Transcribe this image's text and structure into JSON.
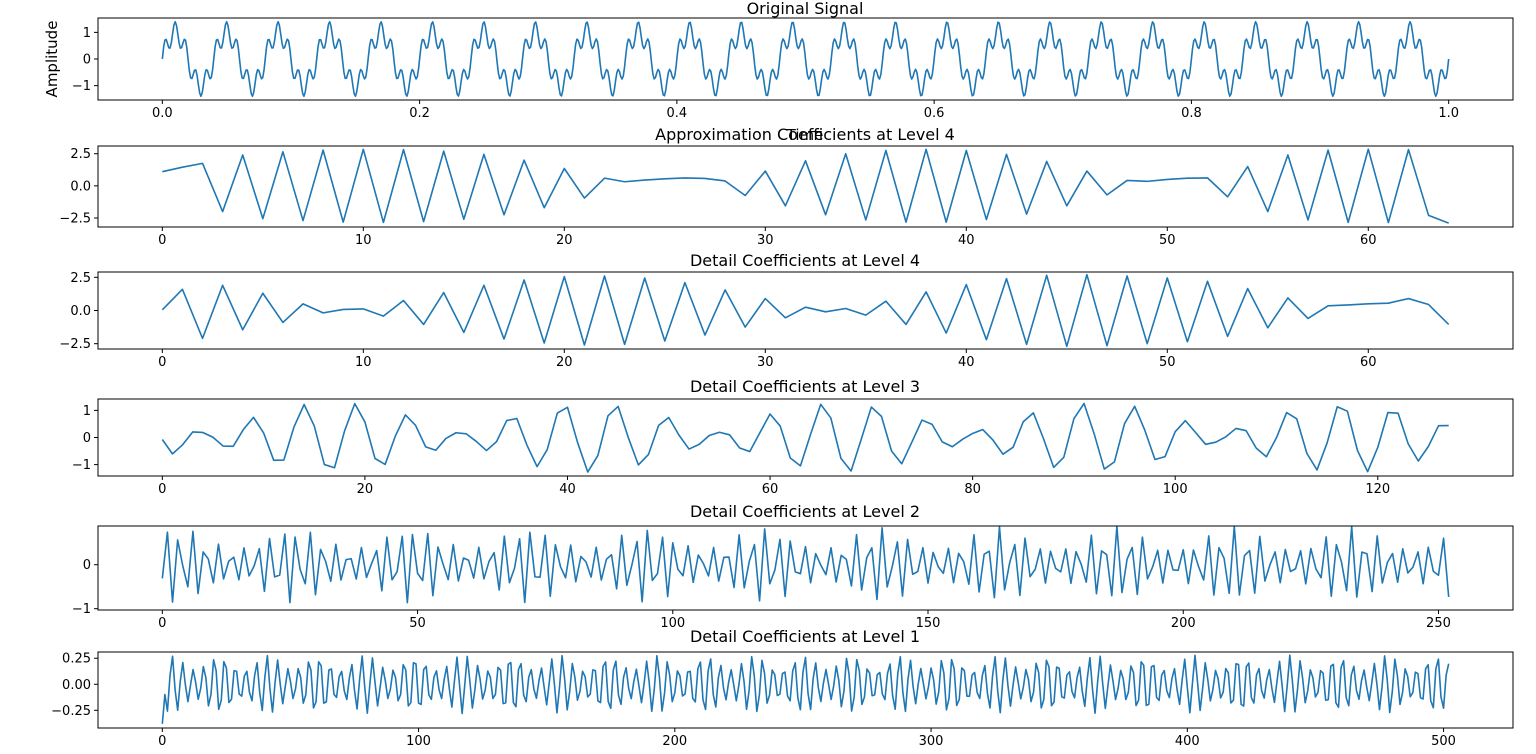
{
  "figure": {
    "background": "#ffffff",
    "line_color": "#1f77b4",
    "spine_color": "#000000",
    "tick_label_color": "#000000",
    "tick_font_size": 13,
    "line_width": 1.6
  },
  "chart_data": [
    {
      "id": "original-signal",
      "type": "line",
      "title": "Original Signal",
      "xlabel": "Time",
      "ylabel": "Amplitude",
      "xlim": [
        -0.05,
        1.05
      ],
      "ylim": [
        -1.54,
        1.54
      ],
      "xticks": [
        0.0,
        0.2,
        0.4,
        0.6,
        0.8,
        1.0
      ],
      "xtick_labels": [
        "0.0",
        "0.2",
        "0.4",
        "0.6",
        "0.8",
        "1.0"
      ],
      "yticks": [
        1,
        0,
        -1
      ],
      "ytick_labels": [
        "1",
        "0",
        "−1"
      ],
      "series": {
        "kind": "sum_sin",
        "n": 1000,
        "t_end": 1.0,
        "components": [
          {
            "freq": 25,
            "amp": 1.0,
            "phase": 0
          },
          {
            "freq": 125,
            "amp": 0.4,
            "phase": 0
          }
        ]
      }
    },
    {
      "id": "approx-level4",
      "type": "line",
      "title": "Approximation Coefficients at Level 4",
      "xlabel": "",
      "ylabel": "",
      "xlim": [
        -3.2,
        67.2
      ],
      "ylim": [
        -3.2,
        3.1
      ],
      "xticks": [
        0,
        10,
        20,
        30,
        40,
        50,
        60
      ],
      "xtick_labels": [
        "0",
        "10",
        "20",
        "30",
        "40",
        "50",
        "60"
      ],
      "yticks": [
        2.5,
        0.0,
        -2.5
      ],
      "ytick_labels": [
        "2.5",
        "0.0",
        "−2.5"
      ],
      "series": {
        "kind": "points",
        "y": [
          1.1,
          1.45,
          1.75,
          -2.0,
          2.4,
          -2.55,
          2.65,
          -2.7,
          2.78,
          -2.82,
          2.84,
          -2.84,
          2.82,
          -2.78,
          2.7,
          -2.6,
          2.45,
          -2.25,
          2.0,
          -1.7,
          1.35,
          -0.95,
          0.6,
          0.32,
          0.45,
          0.55,
          0.62,
          0.58,
          0.38,
          -0.75,
          1.15,
          -1.55,
          1.95,
          -2.25,
          2.5,
          -2.65,
          2.75,
          -2.82,
          2.84,
          -2.82,
          2.75,
          -2.62,
          2.45,
          -2.2,
          1.9,
          -1.55,
          1.15,
          -0.7,
          0.42,
          0.35,
          0.5,
          0.6,
          0.62,
          -0.85,
          1.5,
          -2.0,
          2.4,
          -2.65,
          2.78,
          -2.84,
          2.85,
          -2.85,
          2.82,
          -2.3,
          -2.9
        ]
      }
    },
    {
      "id": "detail-level4",
      "type": "line",
      "title": "Detail Coefficients at Level 4",
      "xlabel": "",
      "ylabel": "",
      "xlim": [
        -3.2,
        67.2
      ],
      "ylim": [
        -2.9,
        2.9
      ],
      "xticks": [
        0,
        10,
        20,
        30,
        40,
        50,
        60
      ],
      "xtick_labels": [
        "0",
        "10",
        "20",
        "30",
        "40",
        "50",
        "60"
      ],
      "yticks": [
        2.5,
        0.0,
        -2.5
      ],
      "ytick_labels": [
        "2.5",
        "0.0",
        "−2.5"
      ],
      "series": {
        "kind": "points",
        "y": [
          0.05,
          1.6,
          -2.1,
          1.9,
          -1.45,
          1.3,
          -0.9,
          0.5,
          -0.18,
          0.08,
          0.12,
          -0.42,
          0.75,
          -1.05,
          1.35,
          -1.65,
          1.9,
          -2.15,
          2.3,
          -2.45,
          2.55,
          -2.6,
          2.6,
          -2.55,
          2.45,
          -2.3,
          2.1,
          -1.85,
          1.55,
          -1.25,
          0.9,
          -0.55,
          0.25,
          -0.1,
          0.15,
          -0.35,
          0.7,
          -1.05,
          1.4,
          -1.7,
          1.95,
          -2.2,
          2.4,
          -2.55,
          2.65,
          -2.7,
          2.7,
          -2.65,
          2.6,
          -2.5,
          2.45,
          -2.35,
          2.2,
          -1.95,
          1.65,
          -1.3,
          0.95,
          -0.6,
          0.35,
          0.42,
          0.5,
          0.55,
          0.9,
          0.45,
          -1.05
        ]
      }
    },
    {
      "id": "detail-level3",
      "type": "line",
      "title": "Detail Coefficients at Level 3",
      "xlabel": "",
      "ylabel": "",
      "xlim": [
        -6.35,
        133.35
      ],
      "ylim": [
        -1.42,
        1.42
      ],
      "xticks": [
        0,
        20,
        40,
        60,
        80,
        100,
        120
      ],
      "xtick_labels": [
        "0",
        "20",
        "40",
        "60",
        "80",
        "100",
        "120"
      ],
      "yticks": [
        1,
        0,
        -1
      ],
      "ytick_labels": [
        "1",
        "0",
        "−1"
      ],
      "series": {
        "kind": "am_carrier",
        "n": 128,
        "carrier_freq": 0.1953,
        "carrier_center": 14,
        "env_base": 0.12,
        "env_amp": 1.18,
        "env_node": 4.5,
        "env_period": 25
      }
    },
    {
      "id": "detail-level2",
      "type": "line",
      "title": "Detail Coefficients at Level 2",
      "xlabel": "",
      "ylabel": "",
      "xlim": [
        -12.6,
        264.6
      ],
      "ylim": [
        -1.03,
        0.88
      ],
      "xticks": [
        0,
        50,
        100,
        150,
        200,
        250
      ],
      "xtick_labels": [
        "0",
        "50",
        "100",
        "150",
        "200",
        "250"
      ],
      "yticks": [
        0,
        -1
      ],
      "ytick_labels": [
        "0",
        "−1"
      ],
      "series": {
        "kind": "am_sin",
        "n": 253,
        "freq": 0.392,
        "phase": -0.4,
        "env_base": 0.62,
        "env_amp": 0.25,
        "env_period": 23,
        "env_phase": 0.8
      }
    },
    {
      "id": "detail-level1",
      "type": "line",
      "title": "Detail Coefficients at Level 1",
      "xlabel": "",
      "ylabel": "",
      "xlim": [
        -25.1,
        527.1
      ],
      "ylim": [
        -0.42,
        0.31
      ],
      "xticks": [
        0,
        100,
        200,
        300,
        400,
        500
      ],
      "xtick_labels": [
        "0",
        "100",
        "200",
        "300",
        "400",
        "500"
      ],
      "yticks": [
        0.25,
        0.0,
        -0.25
      ],
      "ytick_labels": [
        "0.25",
        "0.00",
        "−0.25"
      ],
      "series": {
        "kind": "am_sin",
        "n": 503,
        "freq": 0.243,
        "phase": 2.0,
        "env_base": 0.21,
        "env_amp": 0.07,
        "env_period": 19,
        "env_phase": 0.5,
        "first_point": -0.38
      }
    }
  ]
}
